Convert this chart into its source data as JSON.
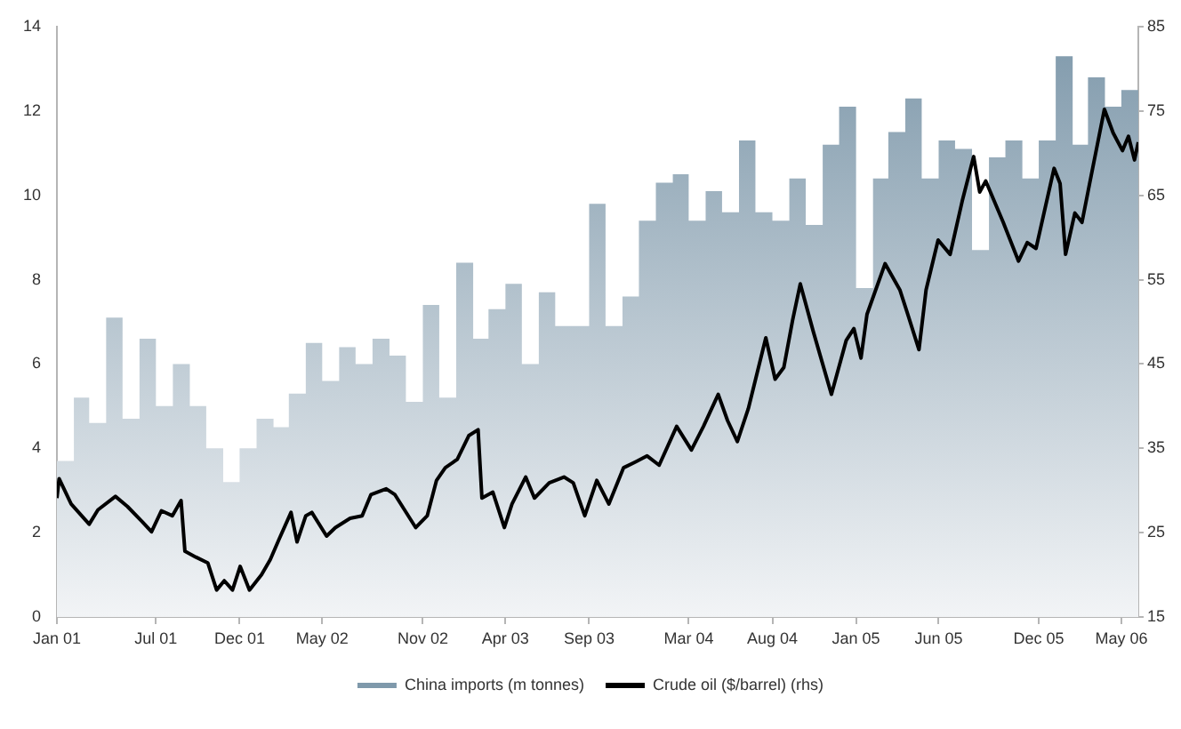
{
  "chart_data": {
    "type": "line",
    "legend": "bottom",
    "grid": false,
    "xlim": [
      "2001-01-01",
      "2006-06-01"
    ],
    "xticks": [
      {
        "value": "2001-01-01",
        "label": "Jan 01"
      },
      {
        "value": "2001-07-01",
        "label": "Jul 01"
      },
      {
        "value": "2001-12-01",
        "label": "Dec 01"
      },
      {
        "value": "2002-05-01",
        "label": "May 02"
      },
      {
        "value": "2002-11-01",
        "label": "Nov 02"
      },
      {
        "value": "2003-04-01",
        "label": "Apr 03"
      },
      {
        "value": "2003-09-01",
        "label": "Sep 03"
      },
      {
        "value": "2004-03-01",
        "label": "Mar 04"
      },
      {
        "value": "2004-08-01",
        "label": "Aug 04"
      },
      {
        "value": "2005-01-01",
        "label": "Jan 05"
      },
      {
        "value": "2005-06-01",
        "label": "Jun 05"
      },
      {
        "value": "2005-12-01",
        "label": "Dec 05"
      },
      {
        "value": "2006-05-01",
        "label": "May 06"
      }
    ],
    "ylim": [
      0,
      14
    ],
    "yticks": [
      0,
      2,
      4,
      6,
      8,
      10,
      12,
      14
    ],
    "y2lim": [
      15,
      85
    ],
    "y2ticks": [
      15,
      25,
      35,
      45,
      55,
      65,
      75,
      85
    ],
    "series": [
      {
        "name": "China imports (m tonnes)",
        "type": "area",
        "color": "#7f99ab",
        "x": [
          "2001-01",
          "2001-02",
          "2001-03",
          "2001-04",
          "2001-05",
          "2001-06",
          "2001-07",
          "2001-08",
          "2001-09",
          "2001-10",
          "2001-11",
          "2001-12",
          "2002-01",
          "2002-02",
          "2002-03",
          "2002-04",
          "2002-05",
          "2002-06",
          "2002-07",
          "2002-08",
          "2002-09",
          "2002-10",
          "2002-11",
          "2002-12",
          "2003-01",
          "2003-02",
          "2003-03",
          "2003-04",
          "2003-05",
          "2003-06",
          "2003-07",
          "2003-08",
          "2003-09",
          "2003-10",
          "2003-11",
          "2003-12",
          "2004-01",
          "2004-02",
          "2004-03",
          "2004-04",
          "2004-05",
          "2004-06",
          "2004-07",
          "2004-08",
          "2004-09",
          "2004-10",
          "2004-11",
          "2004-12",
          "2005-01",
          "2005-02",
          "2005-03",
          "2005-04",
          "2005-05",
          "2005-06",
          "2005-07",
          "2005-08",
          "2005-09",
          "2005-10",
          "2005-11",
          "2005-12",
          "2006-01",
          "2006-02",
          "2006-03",
          "2006-04",
          "2006-05"
        ],
        "values": [
          3.7,
          5.2,
          4.6,
          7.1,
          4.7,
          6.6,
          5.0,
          6.0,
          5.0,
          4.0,
          3.2,
          4.0,
          4.7,
          4.5,
          5.3,
          6.5,
          5.6,
          6.4,
          6.0,
          6.6,
          6.2,
          5.1,
          7.4,
          5.2,
          8.4,
          6.6,
          7.3,
          7.9,
          6.0,
          7.7,
          6.9,
          6.9,
          9.8,
          6.9,
          7.6,
          9.4,
          10.3,
          10.5,
          9.4,
          10.1,
          9.6,
          11.3,
          9.6,
          9.4,
          10.4,
          9.3,
          11.2,
          12.1,
          7.8,
          10.4,
          11.5,
          12.3,
          10.4,
          11.3,
          11.1,
          8.7,
          10.9,
          11.3,
          10.4,
          11.3,
          13.3,
          11.2,
          12.8,
          12.1,
          12.5
        ]
      },
      {
        "name": "Crude oil ($/barrel) (rhs)",
        "axis": "y2",
        "color": "#000000",
        "x": [
          "2001-01-01",
          "2001-01-05",
          "2001-01-27",
          "2001-03-01",
          "2001-03-17",
          "2001-04-18",
          "2001-05-10",
          "2001-06-06",
          "2001-06-23",
          "2001-07-11",
          "2001-07-31",
          "2001-08-16",
          "2001-08-23",
          "2001-09-12",
          "2001-10-04",
          "2001-10-20",
          "2001-11-03",
          "2001-11-18",
          "2001-12-02",
          "2001-12-19",
          "2002-01-10",
          "2002-01-26",
          "2002-02-11",
          "2002-03-05",
          "2002-03-16",
          "2002-04-01",
          "2002-04-12",
          "2002-05-09",
          "2002-05-25",
          "2002-06-21",
          "2002-07-13",
          "2002-07-29",
          "2002-08-26",
          "2002-09-11",
          "2002-10-19",
          "2002-11-09",
          "2002-11-26",
          "2002-12-12",
          "2003-01-03",
          "2003-01-24",
          "2003-02-10",
          "2003-02-17",
          "2003-03-09",
          "2003-03-30",
          "2003-04-13",
          "2003-05-08",
          "2003-05-24",
          "2003-06-20",
          "2003-07-17",
          "2003-08-03",
          "2003-08-24",
          "2003-09-15",
          "2003-10-07",
          "2003-11-03",
          "2003-11-25",
          "2003-12-16",
          "2004-01-07",
          "2004-02-08",
          "2004-03-06",
          "2004-03-28",
          "2004-04-24",
          "2004-05-11",
          "2004-05-29",
          "2004-06-18",
          "2004-07-20",
          "2004-08-06",
          "2004-08-22",
          "2004-09-07",
          "2004-09-21",
          "2004-10-15",
          "2004-11-17",
          "2004-12-14",
          "2004-12-28",
          "2005-01-10",
          "2005-01-21",
          "2005-02-23",
          "2005-03-22",
          "2005-04-07",
          "2005-04-26",
          "2005-05-09",
          "2005-05-31",
          "2005-06-22",
          "2005-07-14",
          "2005-08-04",
          "2005-08-15",
          "2005-08-26",
          "2005-09-27",
          "2005-10-25",
          "2005-11-10",
          "2005-11-26",
          "2005-12-13",
          "2005-12-29",
          "2006-01-09",
          "2006-01-19",
          "2006-02-05",
          "2006-02-18",
          "2006-03-04",
          "2006-03-31",
          "2006-04-16",
          "2006-05-03",
          "2006-05-14",
          "2006-05-25",
          "2006-06-01"
        ],
        "values": [
          29.1,
          31.4,
          28.4,
          26.0,
          27.7,
          29.3,
          28.1,
          26.3,
          25.1,
          27.6,
          27.0,
          28.8,
          22.8,
          22.1,
          21.4,
          18.2,
          19.3,
          18.2,
          21.0,
          18.2,
          20.0,
          21.8,
          24.2,
          27.4,
          23.9,
          27.0,
          27.4,
          24.6,
          25.6,
          26.7,
          27.0,
          29.5,
          30.2,
          29.5,
          25.6,
          27.0,
          31.2,
          32.7,
          33.7,
          36.5,
          37.2,
          29.1,
          29.8,
          25.6,
          28.4,
          31.6,
          29.1,
          30.9,
          31.6,
          30.9,
          27.0,
          31.2,
          28.4,
          32.7,
          33.4,
          34.1,
          33.0,
          37.6,
          34.8,
          37.6,
          41.4,
          38.3,
          35.8,
          39.7,
          48.1,
          43.2,
          44.6,
          50.2,
          54.5,
          48.8,
          41.4,
          47.8,
          49.2,
          45.7,
          50.9,
          56.9,
          53.8,
          50.6,
          46.7,
          53.8,
          59.7,
          58.0,
          64.3,
          69.6,
          65.4,
          66.7,
          61.8,
          57.2,
          59.4,
          58.7,
          63.6,
          68.2,
          66.4,
          58.0,
          62.9,
          61.8,
          66.4,
          75.2,
          72.4,
          70.3,
          72.0,
          69.2,
          71.3
        ]
      }
    ]
  }
}
